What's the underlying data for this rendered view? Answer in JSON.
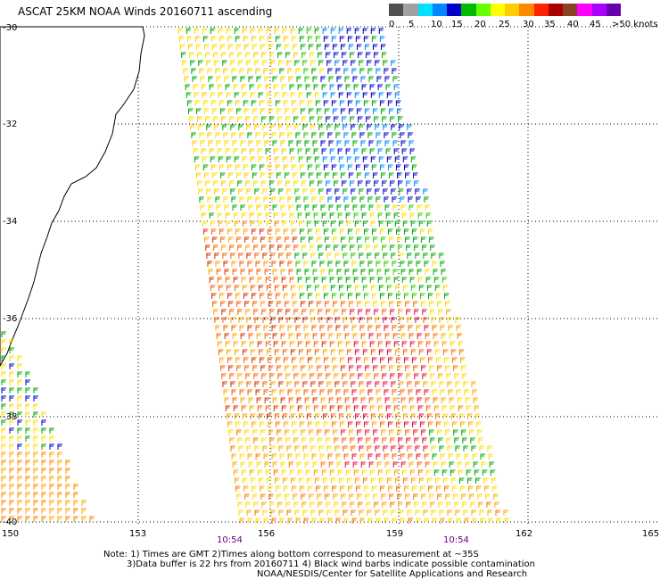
{
  "title": "ASCAT 25KM NOAA Winds 20160711 ascending",
  "legend": {
    "colors": [
      "#505050",
      "#a0a0a0",
      "#00e0ff",
      "#0088ff",
      "#0000cc",
      "#00bb00",
      "#66ff00",
      "#ffff00",
      "#ffcc00",
      "#ff8800",
      "#ff2200",
      "#aa0000",
      "#884422",
      "#ff00ff",
      "#aa00ff",
      "#6600aa"
    ],
    "labels": [
      "0",
      "5",
      "10",
      "15",
      "20",
      "25",
      "30",
      "35",
      "40",
      "45",
      ">50 knots"
    ]
  },
  "latitudes": [
    "-30",
    "-32",
    "-34",
    "-36",
    "-38",
    "-40"
  ],
  "longitudes": [
    "150",
    "153",
    "156",
    "159",
    "162",
    "165"
  ],
  "times": [
    "10:54",
    "10:54"
  ],
  "notes": [
    "Note: 1) Times are GMT 2)Times along bottom correspond to measurement at ~35S",
    "3)Data buffer is 22 hrs from 20160711 4) Black wind barbs indicate possible contamination",
    "NOAA/NESDIS/Center for Satellite Applications and Research"
  ]
}
